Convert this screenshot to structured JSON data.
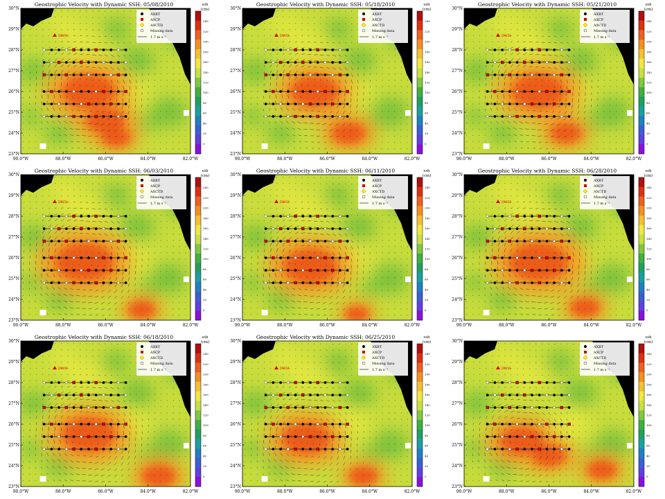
{
  "chart_data": [
    {
      "type": "heatmap",
      "title": "Geostrophic Velocity with Dynamic SSH: 05/08/2010",
      "date": "05/08/2010",
      "eddy": [
        {
          "lon": -86.8,
          "lat": 26.0,
          "s": 55
        },
        {
          "lon": -86.0,
          "lat": 24.6,
          "s": 40
        },
        {
          "lon": -85.5,
          "lat": 23.8,
          "s": 30
        }
      ]
    },
    {
      "type": "heatmap",
      "title": "Geostrophic Velocity with Dynamic SSH: 05/18/2010",
      "date": "05/18/2010",
      "eddy": [
        {
          "lon": -86.6,
          "lat": 26.0,
          "s": 50
        },
        {
          "lon": -85.0,
          "lat": 24.0,
          "s": 35
        }
      ]
    },
    {
      "type": "heatmap",
      "title": "Geostrophic Velocity with Dynamic SSH: 05/21/2010",
      "date": "05/21/2010",
      "eddy": [
        {
          "lon": -86.5,
          "lat": 26.0,
          "s": 55
        },
        {
          "lon": -85.2,
          "lat": 24.0,
          "s": 32
        }
      ]
    },
    {
      "type": "heatmap",
      "title": "Geostrophic Velocity with Dynamic SSH: 06/03/2010",
      "date": "06/03/2010",
      "eddy": [
        {
          "lon": -87.0,
          "lat": 25.8,
          "s": 60
        },
        {
          "lon": -84.3,
          "lat": 23.5,
          "s": 28
        }
      ]
    },
    {
      "type": "heatmap",
      "title": "Geostrophic Velocity with Dynamic SSH: 06/11/2010",
      "date": "06/11/2010",
      "eddy": [
        {
          "lon": -86.8,
          "lat": 25.6,
          "s": 55
        },
        {
          "lon": -84.6,
          "lat": 23.3,
          "s": 25
        }
      ]
    },
    {
      "type": "heatmap",
      "title": "Geostrophic Velocity with Dynamic SSH: 06/28/2010",
      "date": "06/28/2010",
      "eddy": [
        {
          "lon": -86.5,
          "lat": 25.8,
          "s": 60
        },
        {
          "lon": -84.3,
          "lat": 23.6,
          "s": 30
        }
      ]
    },
    {
      "type": "heatmap",
      "title": "Geostrophic Velocity with Dynamic SSH: 06/18/2010",
      "date": "06/18/2010",
      "eddy": [
        {
          "lon": -86.8,
          "lat": 25.5,
          "s": 55
        },
        {
          "lon": -83.5,
          "lat": 23.5,
          "s": 35
        }
      ]
    },
    {
      "type": "heatmap",
      "title": "Geostrophic Velocity with Dynamic SSH: 06/25/2010",
      "date": "06/25/2010",
      "eddy": [
        {
          "lon": -87.0,
          "lat": 25.3,
          "s": 50
        },
        {
          "lon": -84.3,
          "lat": 23.5,
          "s": 30
        }
      ]
    },
    {
      "type": "heatmap",
      "title": "",
      "date": "",
      "eddy": [
        {
          "lon": -87.3,
          "lat": 25.2,
          "s": 45
        },
        {
          "lon": -86.0,
          "lat": 24.5,
          "s": 35
        },
        {
          "lon": -83.5,
          "lat": 23.8,
          "s": 30
        }
      ]
    }
  ],
  "common": {
    "lat_ticks": [
      "23°N",
      "24°N",
      "25°N",
      "26°N",
      "27°N",
      "28°N",
      "29°N",
      "30°N"
    ],
    "lon_ticks": [
      "90.0°W",
      "88.0°W",
      "86.0°W",
      "84.0°W",
      "82.0°W"
    ],
    "colorbar_title": [
      "ssh",
      "(cm)"
    ],
    "colorbar_ticks": [
      "0",
      "20",
      "40",
      "60",
      "80",
      "100",
      "120",
      "140",
      "160",
      "180",
      "200",
      "220",
      "240"
    ],
    "legend": [
      "AXBT",
      "AXCP",
      "AXCTD",
      "Missing data",
      "1.7 m s⁻¹"
    ],
    "site_label": "DWH",
    "colors": {
      "land": "#000000",
      "axbt": "#000000",
      "axcp": "#cc0000",
      "axctd": "#ffee00",
      "missing": "#ffffff",
      "site": "#dd0000"
    }
  }
}
